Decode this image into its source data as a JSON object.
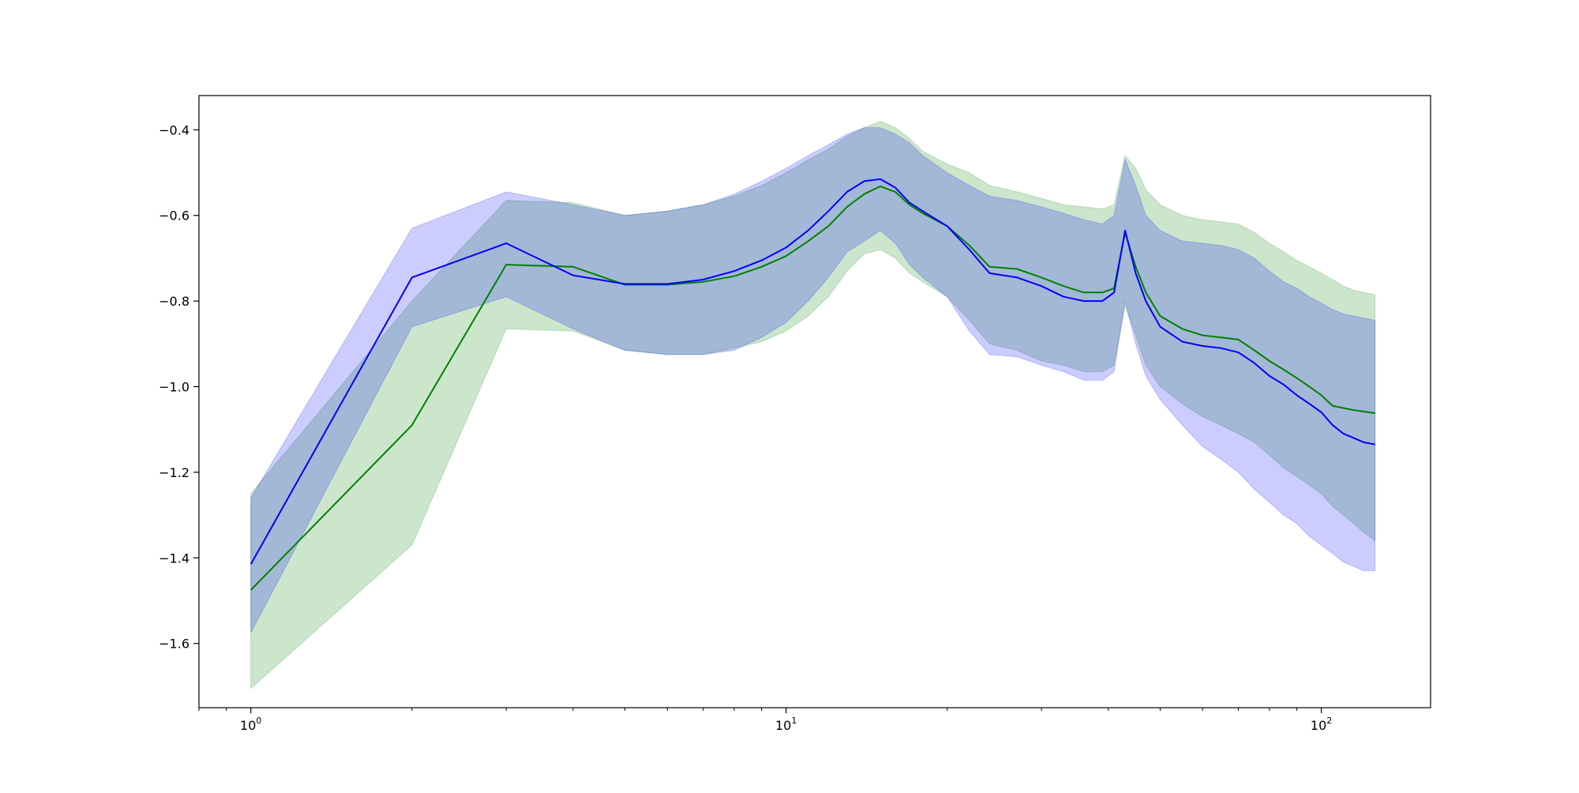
{
  "chart_data": {
    "type": "line",
    "title": "",
    "xlabel": "",
    "ylabel": "",
    "xscale": "log",
    "xlim": [
      0.8,
      160
    ],
    "ylim": [
      -1.75,
      -0.32
    ],
    "grid": false,
    "legend": "none",
    "x_ticks": [
      {
        "value": 1,
        "base": "10",
        "exp": "0"
      },
      {
        "value": 10,
        "base": "10",
        "exp": "1"
      },
      {
        "value": 100,
        "base": "10",
        "exp": "2"
      }
    ],
    "y_ticks": [
      {
        "value": -0.4,
        "label": "−0.4"
      },
      {
        "value": -0.6,
        "label": "−0.6"
      },
      {
        "value": -0.8,
        "label": "−0.8"
      },
      {
        "value": -1.0,
        "label": "−1.0"
      },
      {
        "value": -1.2,
        "label": "−1.2"
      },
      {
        "value": -1.4,
        "label": "−1.4"
      },
      {
        "value": -1.6,
        "label": "−1.6"
      }
    ],
    "series": [
      {
        "key": "green",
        "color": "#008000",
        "fill_color": "#008000",
        "fill_opacity": 0.2,
        "x": [
          1,
          2,
          3,
          4,
          5,
          6,
          7,
          8,
          9,
          10,
          11,
          12,
          13,
          14,
          15,
          16,
          17,
          18,
          20,
          22,
          24,
          27,
          30,
          33,
          36,
          39,
          41,
          43,
          45,
          47,
          50,
          55,
          60,
          65,
          70,
          75,
          80,
          85,
          90,
          95,
          100,
          105,
          110,
          115,
          120,
          126
        ],
        "mean": [
          -1.475,
          -1.09,
          -0.715,
          -0.72,
          -0.762,
          -0.762,
          -0.755,
          -0.742,
          -0.72,
          -0.695,
          -0.66,
          -0.625,
          -0.58,
          -0.55,
          -0.532,
          -0.545,
          -0.575,
          -0.595,
          -0.625,
          -0.67,
          -0.72,
          -0.725,
          -0.745,
          -0.765,
          -0.78,
          -0.78,
          -0.77,
          -0.64,
          -0.72,
          -0.78,
          -0.835,
          -0.865,
          -0.88,
          -0.885,
          -0.89,
          -0.915,
          -0.94,
          -0.96,
          -0.98,
          -1.0,
          -1.02,
          -1.045,
          -1.05,
          -1.055,
          -1.058,
          -1.062
        ],
        "upper": [
          -1.25,
          -0.8,
          -0.565,
          -0.57,
          -0.6,
          -0.59,
          -0.575,
          -0.555,
          -0.53,
          -0.5,
          -0.47,
          -0.445,
          -0.415,
          -0.395,
          -0.38,
          -0.395,
          -0.42,
          -0.45,
          -0.48,
          -0.5,
          -0.53,
          -0.545,
          -0.56,
          -0.575,
          -0.58,
          -0.585,
          -0.575,
          -0.46,
          -0.49,
          -0.54,
          -0.575,
          -0.6,
          -0.61,
          -0.615,
          -0.62,
          -0.64,
          -0.665,
          -0.685,
          -0.705,
          -0.72,
          -0.735,
          -0.75,
          -0.765,
          -0.775,
          -0.78,
          -0.785
        ],
        "lower": [
          -1.705,
          -1.37,
          -0.865,
          -0.87,
          -0.915,
          -0.925,
          -0.925,
          -0.91,
          -0.895,
          -0.87,
          -0.835,
          -0.79,
          -0.73,
          -0.69,
          -0.68,
          -0.7,
          -0.735,
          -0.755,
          -0.79,
          -0.845,
          -0.9,
          -0.915,
          -0.94,
          -0.95,
          -0.965,
          -0.965,
          -0.95,
          -0.81,
          -0.88,
          -0.95,
          -1.0,
          -1.04,
          -1.07,
          -1.09,
          -1.11,
          -1.13,
          -1.16,
          -1.19,
          -1.21,
          -1.23,
          -1.25,
          -1.28,
          -1.3,
          -1.32,
          -1.34,
          -1.36
        ]
      },
      {
        "key": "blue",
        "color": "#0000ff",
        "fill_color": "#0000ff",
        "fill_opacity": 0.2,
        "x": [
          1,
          2,
          3,
          4,
          5,
          6,
          7,
          8,
          9,
          10,
          11,
          12,
          13,
          14,
          15,
          16,
          17,
          18,
          20,
          22,
          24,
          27,
          30,
          33,
          36,
          39,
          41,
          43,
          45,
          47,
          50,
          55,
          60,
          65,
          70,
          75,
          80,
          85,
          90,
          95,
          100,
          105,
          110,
          115,
          120,
          126
        ],
        "mean": [
          -1.415,
          -0.745,
          -0.665,
          -0.74,
          -0.76,
          -0.76,
          -0.75,
          -0.73,
          -0.705,
          -0.675,
          -0.635,
          -0.59,
          -0.545,
          -0.52,
          -0.515,
          -0.535,
          -0.57,
          -0.59,
          -0.625,
          -0.68,
          -0.735,
          -0.745,
          -0.765,
          -0.79,
          -0.8,
          -0.8,
          -0.78,
          -0.635,
          -0.735,
          -0.8,
          -0.86,
          -0.895,
          -0.905,
          -0.91,
          -0.92,
          -0.945,
          -0.975,
          -0.995,
          -1.02,
          -1.04,
          -1.06,
          -1.09,
          -1.11,
          -1.12,
          -1.13,
          -1.135
        ],
        "upper": [
          -1.26,
          -0.63,
          -0.545,
          -0.575,
          -0.6,
          -0.59,
          -0.575,
          -0.55,
          -0.52,
          -0.49,
          -0.46,
          -0.435,
          -0.41,
          -0.395,
          -0.395,
          -0.41,
          -0.43,
          -0.46,
          -0.5,
          -0.53,
          -0.555,
          -0.565,
          -0.58,
          -0.595,
          -0.61,
          -0.62,
          -0.6,
          -0.47,
          -0.53,
          -0.6,
          -0.635,
          -0.66,
          -0.665,
          -0.67,
          -0.68,
          -0.7,
          -0.73,
          -0.755,
          -0.77,
          -0.79,
          -0.805,
          -0.82,
          -0.83,
          -0.835,
          -0.84,
          -0.845
        ],
        "lower": [
          -1.575,
          -0.86,
          -0.79,
          -0.865,
          -0.915,
          -0.925,
          -0.925,
          -0.915,
          -0.885,
          -0.85,
          -0.8,
          -0.745,
          -0.685,
          -0.66,
          -0.635,
          -0.665,
          -0.715,
          -0.745,
          -0.79,
          -0.87,
          -0.925,
          -0.93,
          -0.95,
          -0.965,
          -0.985,
          -0.985,
          -0.965,
          -0.8,
          -0.9,
          -0.975,
          -1.03,
          -1.09,
          -1.14,
          -1.17,
          -1.2,
          -1.24,
          -1.27,
          -1.3,
          -1.32,
          -1.35,
          -1.37,
          -1.39,
          -1.41,
          -1.42,
          -1.43,
          -1.43
        ]
      }
    ]
  }
}
